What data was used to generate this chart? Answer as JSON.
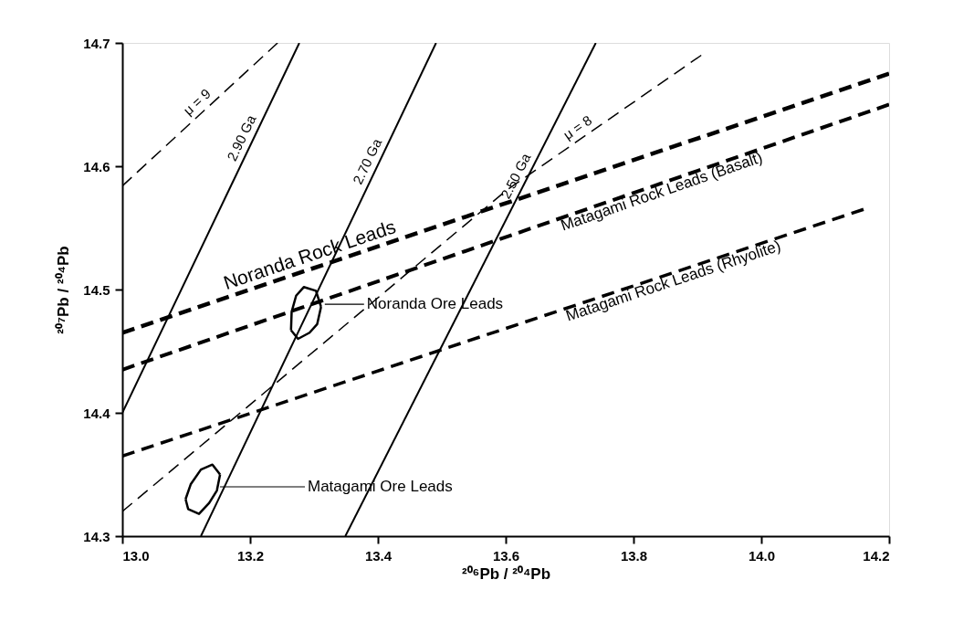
{
  "chart_data": {
    "type": "line",
    "xlabel": "²⁰⁶Pb / ²⁰⁴Pb",
    "ylabel": "²⁰⁷Pb / ²⁰⁴Pb",
    "xlim": [
      13.0,
      14.2
    ],
    "ylim": [
      14.3,
      14.7
    ],
    "xticks": [
      {
        "value": 13.0,
        "label": "13.0"
      },
      13.2,
      13.4,
      13.6,
      13.8,
      {
        "value": 14.0,
        "label": "14.0"
      },
      14.2
    ],
    "yticks": [
      14.3,
      14.4,
      14.5,
      14.6,
      14.7
    ],
    "grid": false,
    "series": [
      {
        "name": "2.90 Ga",
        "color": "#000000",
        "line_style": "solid",
        "x": [
          13.0,
          13.277
        ],
        "values": [
          14.4,
          14.7
        ]
      },
      {
        "name": "2.70 Ga",
        "color": "#000000",
        "line_style": "solid",
        "x": [
          13.123,
          13.491
        ],
        "values": [
          14.3,
          14.7
        ]
      },
      {
        "name": "2.50 Ga",
        "color": "#000000",
        "line_style": "solid",
        "x": [
          13.349,
          13.741
        ],
        "values": [
          14.3,
          14.7
        ]
      },
      {
        "name": "μ = 9",
        "color": "#000000",
        "line_style": "dashed",
        "x": [
          13.0,
          13.243
        ],
        "values": [
          14.584,
          14.7
        ]
      },
      {
        "name": "μ = 8",
        "color": "#000000",
        "line_style": "dashed",
        "x": [
          13.0,
          13.6,
          13.906
        ],
        "values": [
          14.32,
          14.58,
          14.69
        ]
      },
      {
        "name": "Noranda Rock Leads",
        "color": "#000000",
        "line_style": "dashed",
        "x": [
          13.0,
          14.2
        ],
        "values": [
          14.465,
          14.675
        ]
      },
      {
        "name": "Matagami Rock Leads  (Basalt)",
        "color": "#000000",
        "line_style": "dashed",
        "x": [
          13.0,
          14.2
        ],
        "values": [
          14.435,
          14.65
        ]
      },
      {
        "name": "Matagami Rock Leads  (Rhyolite)",
        "color": "#000000",
        "line_style": "dashed",
        "x": [
          13.0,
          14.16
        ],
        "values": [
          14.365,
          14.565
        ]
      },
      {
        "color": "#000000",
        "line_style": "solid",
        "x": [
          13.264,
          13.265,
          13.272,
          13.284,
          13.303,
          13.311
        ],
        "values": [
          14.467,
          14.482,
          14.495,
          14.502,
          14.499,
          14.486
        ]
      },
      {
        "color": "#000000",
        "line_style": "solid",
        "x": [
          13.264,
          13.275,
          13.293,
          13.305,
          13.311
        ],
        "values": [
          14.467,
          14.46,
          14.465,
          14.472,
          14.486
        ]
      },
      {
        "color": "#000000",
        "line_style": "solid",
        "x": [
          13.099,
          13.107,
          13.123,
          13.141,
          13.153
        ],
        "values": [
          14.33,
          14.342,
          14.354,
          14.358,
          14.35
        ]
      },
      {
        "color": "#000000",
        "line_style": "solid",
        "x": [
          13.099,
          13.103,
          13.12,
          13.136,
          13.148,
          13.153
        ],
        "values": [
          14.33,
          14.322,
          14.318,
          14.327,
          14.337,
          14.35
        ]
      }
    ],
    "annotations": [
      {
        "text": "Noranda Ore Leads",
        "x": 13.314,
        "y": 14.488
      },
      {
        "text": "Matagami Ore Leads",
        "x": 13.15,
        "y": 14.34
      }
    ]
  }
}
